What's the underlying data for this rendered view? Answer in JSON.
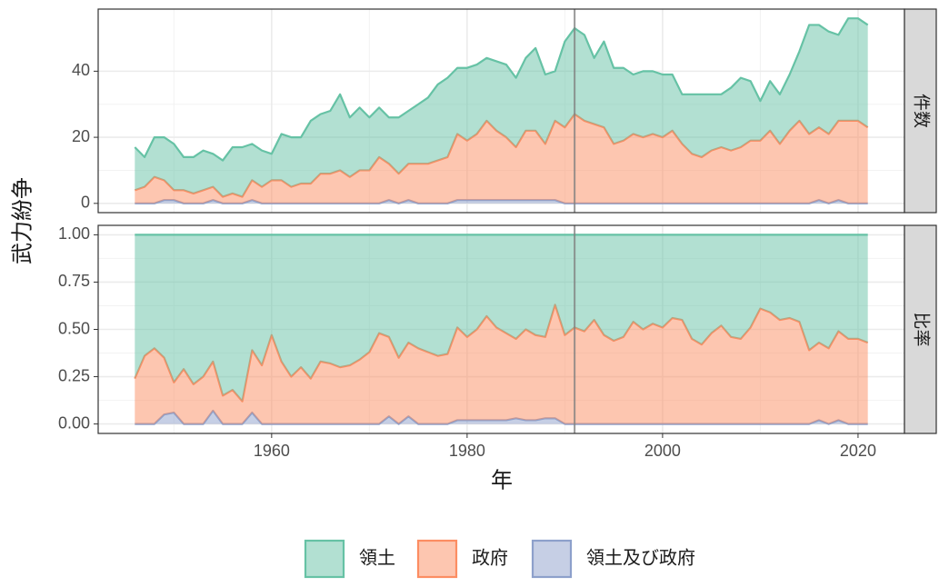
{
  "chart_data": [
    {
      "type": "area",
      "stacked": true,
      "panel_label": "件数",
      "ylabel": "武力紛争",
      "x": [
        1946,
        1947,
        1948,
        1949,
        1950,
        1951,
        1952,
        1953,
        1954,
        1955,
        1956,
        1957,
        1958,
        1959,
        1960,
        1961,
        1962,
        1963,
        1964,
        1965,
        1966,
        1967,
        1968,
        1969,
        1970,
        1971,
        1972,
        1973,
        1974,
        1975,
        1976,
        1977,
        1978,
        1979,
        1980,
        1981,
        1982,
        1983,
        1984,
        1985,
        1986,
        1987,
        1988,
        1989,
        1990,
        1991,
        1992,
        1993,
        1994,
        1995,
        1996,
        1997,
        1998,
        1999,
        2000,
        2001,
        2002,
        2003,
        2004,
        2005,
        2006,
        2007,
        2008,
        2009,
        2010,
        2011,
        2012,
        2013,
        2014,
        2015,
        2016,
        2017,
        2018,
        2019,
        2020,
        2021
      ],
      "series": [
        {
          "name": "領土",
          "color": "#66c2a5",
          "values": [
            13,
            9,
            12,
            13,
            14,
            10,
            11,
            12,
            10,
            11,
            14,
            15,
            11,
            11,
            8,
            14,
            15,
            14,
            19,
            18,
            19,
            23,
            18,
            19,
            16,
            15,
            14,
            17,
            16,
            18,
            20,
            23,
            24,
            20,
            22,
            21,
            19,
            21,
            22,
            21,
            22,
            25,
            21,
            15,
            26,
            26,
            26,
            20,
            26,
            23,
            22,
            18,
            20,
            19,
            19,
            17,
            15,
            18,
            19,
            17,
            16,
            19,
            21,
            18,
            12,
            15,
            15,
            17,
            21,
            33,
            31,
            31,
            26,
            31,
            31,
            31
          ]
        },
        {
          "name": "政府",
          "color": "#fc8d62",
          "values": [
            4,
            5,
            8,
            6,
            3,
            4,
            3,
            4,
            4,
            2,
            3,
            2,
            6,
            5,
            7,
            7,
            5,
            6,
            6,
            9,
            9,
            10,
            8,
            10,
            10,
            14,
            11,
            9,
            11,
            12,
            12,
            13,
            14,
            20,
            18,
            20,
            24,
            21,
            19,
            16,
            21,
            21,
            17,
            24,
            23,
            27,
            25,
            24,
            23,
            18,
            19,
            21,
            20,
            21,
            20,
            22,
            18,
            15,
            14,
            16,
            17,
            16,
            17,
            19,
            19,
            22,
            18,
            22,
            25,
            21,
            22,
            21,
            24,
            25,
            25,
            23
          ]
        },
        {
          "name": "領土及び政府",
          "color": "#8da0cb",
          "values": [
            0,
            0,
            0,
            1,
            1,
            0,
            0,
            0,
            1,
            0,
            0,
            0,
            1,
            0,
            0,
            0,
            0,
            0,
            0,
            0,
            0,
            0,
            0,
            0,
            0,
            0,
            1,
            0,
            1,
            0,
            0,
            0,
            0,
            1,
            1,
            1,
            1,
            1,
            1,
            1,
            1,
            1,
            1,
            1,
            0,
            0,
            0,
            0,
            0,
            0,
            0,
            0,
            0,
            0,
            0,
            0,
            0,
            0,
            0,
            0,
            0,
            0,
            0,
            0,
            0,
            0,
            0,
            0,
            0,
            0,
            1,
            0,
            1,
            0,
            0,
            0
          ]
        }
      ],
      "xlim": [
        1942.25,
        2024.75
      ],
      "xticks": [
        1960,
        1980,
        2000,
        2020
      ],
      "ylim": [
        -2.8,
        58.8
      ],
      "yticks": [
        0,
        20,
        40
      ],
      "grid": true,
      "vline": 1991
    },
    {
      "type": "area",
      "stacked": true,
      "panel_label": "比率",
      "xlabel": "年",
      "x": [
        1946,
        1947,
        1948,
        1949,
        1950,
        1951,
        1952,
        1953,
        1954,
        1955,
        1956,
        1957,
        1958,
        1959,
        1960,
        1961,
        1962,
        1963,
        1964,
        1965,
        1966,
        1967,
        1968,
        1969,
        1970,
        1971,
        1972,
        1973,
        1974,
        1975,
        1976,
        1977,
        1978,
        1979,
        1980,
        1981,
        1982,
        1983,
        1984,
        1985,
        1986,
        1987,
        1988,
        1989,
        1990,
        1991,
        1992,
        1993,
        1994,
        1995,
        1996,
        1997,
        1998,
        1999,
        2000,
        2001,
        2002,
        2003,
        2004,
        2005,
        2006,
        2007,
        2008,
        2009,
        2010,
        2011,
        2012,
        2013,
        2014,
        2015,
        2016,
        2017,
        2018,
        2019,
        2020,
        2021
      ],
      "series": [
        {
          "name": "領土",
          "color": "#66c2a5",
          "values": [
            0.76,
            0.64,
            0.6,
            0.65,
            0.78,
            0.71,
            0.79,
            0.75,
            0.67,
            0.85,
            0.82,
            0.88,
            0.61,
            0.69,
            0.53,
            0.67,
            0.75,
            0.7,
            0.76,
            0.67,
            0.68,
            0.7,
            0.69,
            0.66,
            0.62,
            0.52,
            0.54,
            0.65,
            0.57,
            0.6,
            0.62,
            0.64,
            0.63,
            0.49,
            0.54,
            0.5,
            0.43,
            0.49,
            0.52,
            0.55,
            0.5,
            0.53,
            0.54,
            0.37,
            0.53,
            0.49,
            0.51,
            0.45,
            0.53,
            0.56,
            0.54,
            0.46,
            0.5,
            0.47,
            0.49,
            0.44,
            0.45,
            0.55,
            0.58,
            0.52,
            0.48,
            0.54,
            0.55,
            0.49,
            0.39,
            0.41,
            0.45,
            0.44,
            0.46,
            0.61,
            0.57,
            0.6,
            0.51,
            0.55,
            0.55,
            0.57
          ]
        },
        {
          "name": "政府",
          "color": "#fc8d62",
          "values": [
            0.24,
            0.36,
            0.4,
            0.3,
            0.16,
            0.29,
            0.21,
            0.25,
            0.26,
            0.15,
            0.18,
            0.12,
            0.33,
            0.31,
            0.47,
            0.33,
            0.25,
            0.3,
            0.24,
            0.33,
            0.32,
            0.3,
            0.31,
            0.34,
            0.38,
            0.48,
            0.42,
            0.35,
            0.39,
            0.4,
            0.38,
            0.36,
            0.37,
            0.49,
            0.44,
            0.48,
            0.55,
            0.49,
            0.46,
            0.42,
            0.48,
            0.45,
            0.43,
            0.6,
            0.47,
            0.51,
            0.49,
            0.55,
            0.47,
            0.44,
            0.46,
            0.54,
            0.5,
            0.53,
            0.51,
            0.56,
            0.55,
            0.45,
            0.42,
            0.48,
            0.52,
            0.46,
            0.45,
            0.51,
            0.61,
            0.59,
            0.55,
            0.56,
            0.54,
            0.39,
            0.41,
            0.4,
            0.47,
            0.45,
            0.45,
            0.43
          ]
        },
        {
          "name": "領土及び政府",
          "color": "#8da0cb",
          "values": [
            0,
            0,
            0,
            0.05,
            0.06,
            0,
            0,
            0,
            0.07,
            0,
            0,
            0,
            0.06,
            0,
            0,
            0,
            0,
            0,
            0,
            0,
            0,
            0,
            0,
            0,
            0,
            0,
            0.04,
            0,
            0.04,
            0,
            0,
            0,
            0,
            0.02,
            0.02,
            0.02,
            0.02,
            0.02,
            0.02,
            0.03,
            0.02,
            0.02,
            0.03,
            0.03,
            0,
            0,
            0,
            0,
            0,
            0,
            0,
            0,
            0,
            0,
            0,
            0,
            0,
            0,
            0,
            0,
            0,
            0,
            0,
            0,
            0,
            0,
            0,
            0,
            0,
            0,
            0.02,
            0,
            0.02,
            0,
            0,
            0
          ]
        }
      ],
      "xlim": [
        1942.25,
        2024.75
      ],
      "xticks": [
        1960,
        1980,
        2000,
        2020
      ],
      "ylim": [
        -0.05,
        1.05
      ],
      "yticks": [
        {
          "value": 0,
          "label": "0.00"
        },
        {
          "value": 0.25,
          "label": "0.25"
        },
        {
          "value": 0.5,
          "label": "0.50"
        },
        {
          "value": 0.75,
          "label": "0.75"
        },
        {
          "value": 1,
          "label": "1.00"
        }
      ],
      "grid": true,
      "vline": 1991
    }
  ]
}
